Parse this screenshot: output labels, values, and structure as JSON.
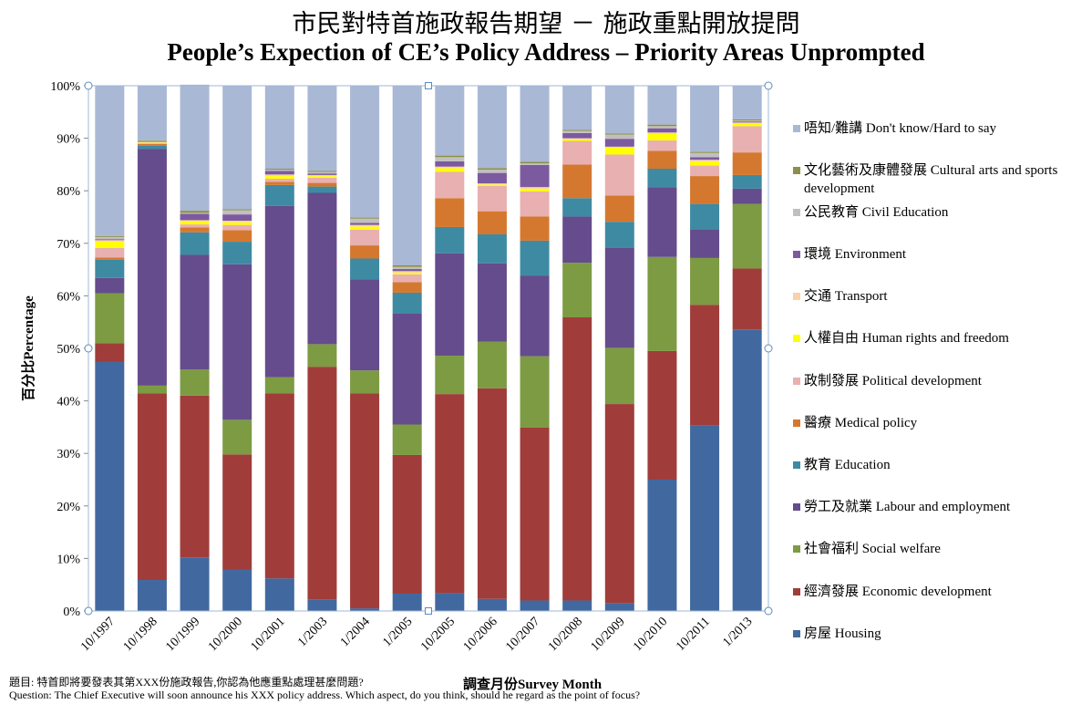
{
  "title_zh": "市民對特首施政報告期望 － 施政重點開放提問",
  "title_en": "People’s Expection of CE’s Policy Address – Priority Areas Unprompted",
  "footer": {
    "line1": "題目: 特首即將要發表其第XXX份施政報告,你認為他應重點處理甚麼問題?",
    "line2": "Question: The Chief Executive  will  soon announce his XXX policy  address. Which aspect, do you think,  should he regard as the point of focus?"
  },
  "chart_data": {
    "type": "bar",
    "stacked": true,
    "title": "People’s Expection of CE’s Policy Address – Priority Areas Unprompted",
    "xlabel": "調查月份Survey Month",
    "ylabel": "百分比Percentage",
    "ylim": [
      0,
      100
    ],
    "y_ticks": [
      "0%",
      "10%",
      "20%",
      "30%",
      "40%",
      "50%",
      "60%",
      "70%",
      "80%",
      "90%",
      "100%"
    ],
    "grid": false,
    "legend_position": "right",
    "categories": [
      "10/1997",
      "10/1998",
      "10/1999",
      "10/2000",
      "10/2001",
      "1/2003",
      "1/2004",
      "1/2005",
      "10/2005",
      "10/2006",
      "10/2007",
      "10/2008",
      "10/2009",
      "10/2010",
      "10/2011",
      "1/2013"
    ],
    "series": [
      {
        "name": "房屋 Housing",
        "color": "#4169A0",
        "values": [
          47.4,
          5.9,
          10.2,
          7.9,
          6.2,
          2.2,
          0.5,
          3.3,
          3.4,
          2.3,
          2.0,
          2.0,
          1.5,
          25.0,
          35.4,
          53.6
        ]
      },
      {
        "name": "經濟發展 Economic development",
        "color": "#A03D3A",
        "values": [
          3.6,
          35.5,
          30.8,
          21.9,
          35.2,
          44.3,
          40.9,
          26.4,
          37.9,
          40.1,
          32.9,
          53.9,
          37.9,
          24.5,
          22.9,
          11.6
        ]
      },
      {
        "name": "社會福利 Social welfare",
        "color": "#7C9B42",
        "values": [
          9.5,
          1.5,
          5.0,
          6.6,
          3.1,
          4.3,
          4.4,
          5.8,
          7.3,
          8.9,
          13.6,
          10.4,
          10.7,
          17.9,
          8.9,
          12.3
        ]
      },
      {
        "name": "勞工及就業 Labour and employment",
        "color": "#654C8C",
        "values": [
          2.9,
          45.1,
          21.8,
          29.6,
          32.6,
          28.8,
          17.3,
          21.1,
          19.5,
          14.9,
          15.3,
          8.8,
          19.0,
          13.3,
          5.5,
          2.9
        ]
      },
      {
        "name": "教育 Education",
        "color": "#3E8AA2",
        "values": [
          3.5,
          0.6,
          4.3,
          4.3,
          4.0,
          1.2,
          4.0,
          4.0,
          5.0,
          5.5,
          6.7,
          3.5,
          5.0,
          3.5,
          4.8,
          2.6
        ]
      },
      {
        "name": "醫療 Medical policy",
        "color": "#D5782F",
        "values": [
          0.4,
          0.3,
          0.9,
          2.2,
          0.6,
          0.7,
          2.5,
          2.0,
          5.5,
          4.4,
          4.6,
          6.4,
          5.0,
          3.4,
          5.3,
          4.3
        ]
      },
      {
        "name": "政制發展 Political development",
        "color": "#E8B0B0",
        "values": [
          1.8,
          0.2,
          0.6,
          1.0,
          0.6,
          1.0,
          3.0,
          1.5,
          5.0,
          4.8,
          4.8,
          4.5,
          7.8,
          2.0,
          2.0,
          5.0
        ]
      },
      {
        "name": "人權自由 Human rights and freedom",
        "color": "#FFFF00",
        "values": [
          1.2,
          0.1,
          0.6,
          0.5,
          0.5,
          0.3,
          0.6,
          0.3,
          0.7,
          0.3,
          0.5,
          0.3,
          1.3,
          1.2,
          0.8,
          0.5
        ]
      },
      {
        "name": "交通 Transport",
        "color": "#FAD2A8",
        "values": [
          0.3,
          0.1,
          0.2,
          0.3,
          0.3,
          0.2,
          0.3,
          0.3,
          0.3,
          0.2,
          0.3,
          0.2,
          0.2,
          0.3,
          0.3,
          0.2
        ]
      },
      {
        "name": "環境 Environment",
        "color": "#7C5AA0",
        "values": [
          0.2,
          0.1,
          1.2,
          1.2,
          0.7,
          0.3,
          0.4,
          0.4,
          1.0,
          2.0,
          4.2,
          1.0,
          1.5,
          0.8,
          0.5,
          0.2
        ]
      },
      {
        "name": "公民教育 Civil Education",
        "color": "#C0C0C0",
        "values": [
          0.4,
          0.1,
          0.2,
          0.8,
          0.2,
          0.3,
          0.8,
          0.4,
          0.8,
          0.6,
          0.3,
          0.4,
          0.8,
          0.4,
          0.8,
          0.2
        ]
      },
      {
        "name": "文化藝術及康體發展 Cultural arts and sports development",
        "color": "#8F8F47",
        "values": [
          0.2,
          0.1,
          0.4,
          0.2,
          0.2,
          0.2,
          0.2,
          0.3,
          0.3,
          0.3,
          0.3,
          0.2,
          0.2,
          0.3,
          0.2,
          0.2
        ]
      },
      {
        "name": "唔知/難講 Don't know/Hard to say",
        "color": "#A9B8D5",
        "values": [
          28.6,
          10.4,
          24.0,
          23.5,
          15.8,
          16.2,
          25.1,
          34.2,
          13.3,
          15.7,
          14.5,
          8.4,
          9.1,
          7.4,
          12.6,
          6.4
        ]
      }
    ]
  }
}
